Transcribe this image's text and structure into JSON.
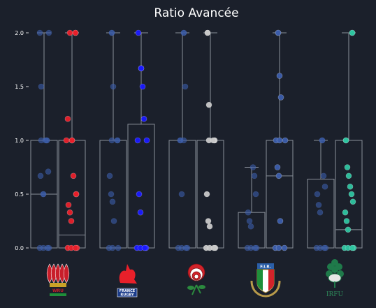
{
  "chart_data": {
    "type": "box",
    "title": "Ratio Avancée",
    "xlabel": "",
    "ylabel": "",
    "ylim": [
      0,
      2
    ],
    "y_ticks": [
      "0.0",
      "0.5",
      "1.0",
      "1.5",
      "2.0"
    ],
    "grid": false,
    "legend": "none",
    "colors": {
      "background": "#1b202b",
      "box_edge": "#8a8f99",
      "opponent_points": "#3b5dab",
      "wales": "#e8202a",
      "france": "#1a1aff",
      "england": "#c8c8c8",
      "italy": "#3b5dab",
      "ireland": "#2ec4a0"
    },
    "groups": [
      {
        "team_logo_icon": "wales-logo-icon",
        "logo_text": "WRU",
        "point_color": "#e8202a",
        "boxes": [
          {
            "side": "left",
            "q1": 0,
            "median": 0.5,
            "q3": 1.0,
            "min": 0,
            "max": 2.0,
            "points": [
              0,
              0,
              0,
              0,
              0.5,
              0.5,
              0.67,
              0.71,
              1,
              1,
              1,
              1,
              1.5,
              2,
              2
            ]
          },
          {
            "side": "right",
            "q1": 0,
            "median": 0.12,
            "q3": 1.0,
            "min": 0,
            "max": 2.0,
            "points": [
              0,
              0,
              0,
              0,
              0.25,
              0.33,
              0.4,
              0.5,
              0.5,
              0.67,
              1,
              1,
              1,
              1.2,
              2,
              2,
              2
            ]
          }
        ]
      },
      {
        "team_logo_icon": "france-logo-icon",
        "logo_text": "FRANCE RUGBY",
        "point_color": "#1a1aff",
        "boxes": [
          {
            "side": "left",
            "q1": 0,
            "median": 1.0,
            "q3": 1.0,
            "min": 0,
            "max": 2.0,
            "points": [
              0,
              0,
              0,
              0.25,
              0.43,
              0.5,
              0.67,
              1,
              1,
              1,
              1.5,
              2,
              2
            ]
          },
          {
            "side": "right",
            "q1": 0,
            "median": 0,
            "q3": 1.15,
            "min": 0,
            "max": 2.0,
            "points": [
              0,
              0,
              0,
              0,
              0.33,
              0.5,
              1,
              1,
              1.2,
              1.5,
              1.67,
              1.67,
              2
            ]
          }
        ]
      },
      {
        "team_logo_icon": "england-rose-icon",
        "logo_text": "",
        "point_color": "#c8c8c8",
        "boxes": [
          {
            "side": "left",
            "q1": 0,
            "median": 1.0,
            "q3": 1.0,
            "min": 0,
            "max": 2.0,
            "points": [
              0,
              0,
              0,
              0,
              0.5,
              1,
              1,
              1,
              1.5,
              2,
              2
            ]
          },
          {
            "side": "right",
            "q1": 0,
            "median": 1.0,
            "q3": 1.0,
            "min": 0,
            "max": 2.0,
            "points": [
              0,
              0,
              0,
              0,
              0.2,
              0.25,
              0.5,
              1,
              1,
              1,
              1,
              1.33,
              2,
              2
            ]
          }
        ]
      },
      {
        "team_logo_icon": "italy-fir-logo-icon",
        "logo_text": "F.I.R.",
        "point_color": "#3b5dab",
        "boxes": [
          {
            "side": "left",
            "q1": 0,
            "median": 0,
            "q3": 0.33,
            "min": 0,
            "max": 0.75,
            "points": [
              0,
              0,
              0,
              0,
              0.2,
              0.25,
              0.33,
              0.5,
              0.67,
              0.75
            ]
          },
          {
            "side": "right",
            "q1": 0,
            "median": 0.67,
            "q3": 1.0,
            "min": 0,
            "max": 2.0,
            "points": [
              0,
              0,
              0,
              0.25,
              0.67,
              0.75,
              1,
              1,
              1,
              1.4,
              1.6,
              2,
              2
            ]
          }
        ]
      },
      {
        "team_logo_icon": "ireland-irfu-logo-icon",
        "logo_text": "IRFU",
        "point_color": "#2ec4a0",
        "boxes": [
          {
            "side": "left",
            "q1": 0,
            "median": 0,
            "q3": 0.64,
            "min": 0,
            "max": 1.0,
            "points": [
              0,
              0,
              0,
              0,
              0.33,
              0.4,
              0.5,
              0.57,
              0.67,
              1,
              1
            ]
          },
          {
            "side": "right",
            "q1": 0,
            "median": 0.17,
            "q3": 1.0,
            "min": 0,
            "max": 2.0,
            "points": [
              0,
              0,
              0,
              0,
              0.17,
              0.25,
              0.33,
              0.43,
              0.5,
              0.57,
              0.67,
              0.75,
              1,
              1,
              2,
              2
            ]
          }
        ]
      }
    ]
  }
}
